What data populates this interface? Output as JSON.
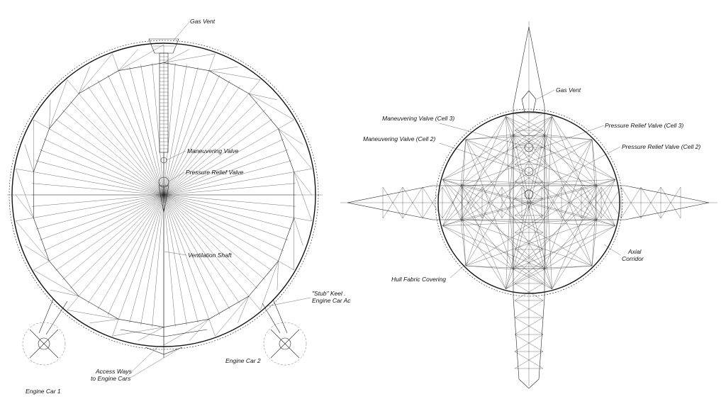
{
  "left_view": {
    "gas_vent": "Gas Vent",
    "maneuvering_valve": "Maneuvering Valve",
    "pressure_relief_valve": "Pressure Relief Valve",
    "ventilation_shaft": "Ventilation Shaft",
    "stub_keel": "\"Stub\" Keel .",
    "engine_car_access": "Engine Car Ac",
    "access_ways_1": "Access Ways",
    "access_ways_2": "to Engine Cars",
    "engine_car_2": "Engine Car 2",
    "engine_car_1": "Engine Car 1"
  },
  "right_view": {
    "gas_vent": "Gas Vent",
    "maneuvering_valve_cell3": "Maneuvering Valve (Cell 3)",
    "maneuvering_valve_cell2": "Maneuvering Valve (Cell 2)",
    "pressure_relief_valve_cell3": "Pressure Relief Valve (Cell 3)",
    "pressure_relief_valve_cell2": "Pressure Relief Valve (Cell 2)",
    "axial": "Axial",
    "corridor": "Corridor",
    "hull_fabric_covering": "Hull Fabric Covering"
  }
}
